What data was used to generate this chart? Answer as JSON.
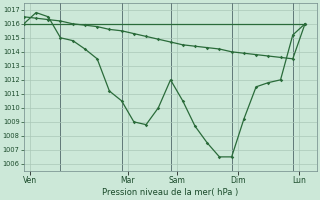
{
  "background_color": "#cce8d8",
  "grid_color": "#aac8b8",
  "line_color": "#2a6b3a",
  "title": "Pression niveau de la mer( hPa )",
  "ylim_min": 1005.5,
  "ylim_max": 1017.5,
  "yticks": [
    1006,
    1007,
    1008,
    1009,
    1010,
    1011,
    1012,
    1013,
    1014,
    1015,
    1016,
    1017
  ],
  "day_labels": [
    "Ven",
    "Mar",
    "Sam",
    "Dim",
    "Lun"
  ],
  "day_positions": [
    0.5,
    8.5,
    12.5,
    17.5,
    22.5
  ],
  "xlim_min": 0,
  "xlim_max": 24,
  "series1_x": [
    0,
    1,
    2,
    3,
    4,
    5,
    6,
    7,
    8,
    9,
    10,
    11,
    12,
    13,
    14,
    15,
    16,
    17,
    18,
    19,
    20,
    21,
    22,
    23
  ],
  "series1_y": [
    1016.0,
    1016.0,
    1016.0,
    1016.0,
    1016.0,
    1016.0,
    1016.0,
    1016.0,
    1016.0,
    1016.0,
    1016.0,
    1016.0,
    1016.0,
    1016.0,
    1016.0,
    1016.0,
    1016.0,
    1016.0,
    1016.0,
    1016.0,
    1016.0,
    1016.0,
    1016.0,
    1016.0
  ],
  "series2_x": [
    0,
    1,
    2,
    3,
    4,
    5,
    6,
    7,
    8,
    9,
    10,
    11,
    12,
    13,
    14,
    15,
    16,
    17,
    18,
    19,
    20,
    21,
    22,
    23
  ],
  "series2_y": [
    1016.5,
    1016.4,
    1016.3,
    1016.2,
    1016.0,
    1015.9,
    1015.8,
    1015.6,
    1015.5,
    1015.3,
    1015.1,
    1014.9,
    1014.7,
    1014.5,
    1014.4,
    1014.3,
    1014.2,
    1014.0,
    1013.9,
    1013.8,
    1013.7,
    1013.6,
    1013.5,
    1016.0
  ],
  "series3_x": [
    0,
    1,
    2,
    3,
    4,
    5,
    6,
    7,
    8,
    9,
    10,
    11,
    12,
    13,
    14,
    15,
    16,
    17,
    18,
    19,
    20,
    21,
    22,
    23
  ],
  "series3_y": [
    1016.0,
    1016.8,
    1016.5,
    1015.0,
    1014.8,
    1014.2,
    1013.5,
    1011.2,
    1010.5,
    1009.0,
    1008.8,
    1010.0,
    1012.0,
    1010.5,
    1008.7,
    1007.5,
    1006.5,
    1006.5,
    1009.2,
    1011.5,
    1011.8,
    1012.0,
    1015.2,
    1016.0
  ],
  "vline_positions": [
    3,
    8,
    12,
    17,
    22
  ],
  "ylabel_fontsize": 5.5,
  "ytick_fontsize": 4.8,
  "xtick_fontsize": 5.5,
  "xlabel_fontsize": 6.0
}
